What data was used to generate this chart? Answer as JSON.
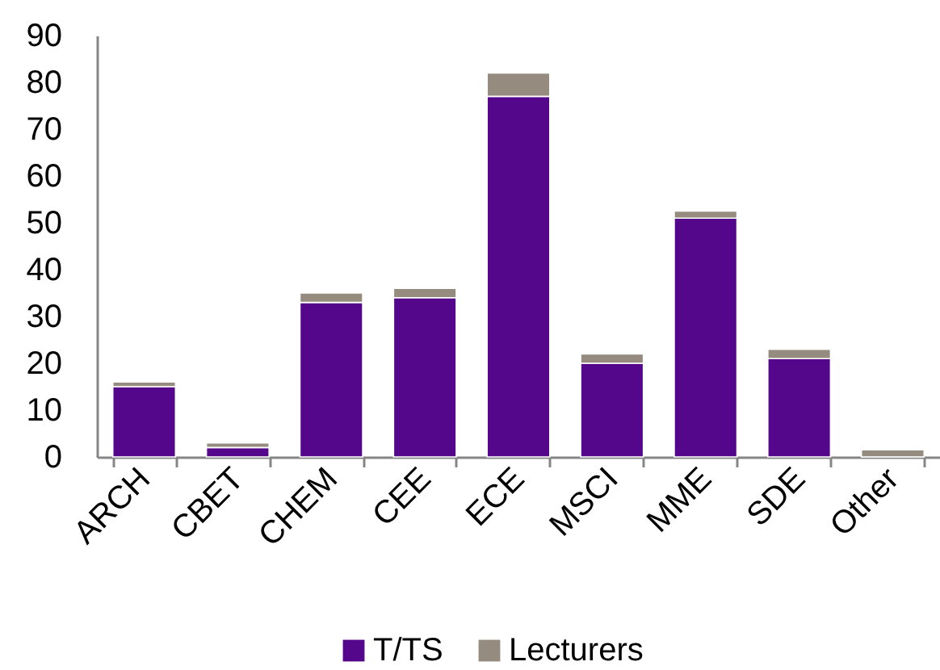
{
  "chart_data": {
    "type": "bar",
    "stacked": true,
    "categories": [
      "ARCH",
      "CBET",
      "CHEM",
      "CEE",
      "ECE",
      "MSCI",
      "MME",
      "SDE",
      "Other"
    ],
    "series": [
      {
        "name": "T/TS",
        "color": "#55078b",
        "values": [
          15,
          2,
          33,
          34,
          77,
          20,
          51,
          21,
          0
        ]
      },
      {
        "name": "Lecturers",
        "color": "#958b7f",
        "values": [
          1,
          1,
          2,
          2,
          5,
          2,
          1.5,
          2,
          1.5
        ]
      }
    ],
    "ylim": [
      0,
      90
    ],
    "yticks": [
      0,
      10,
      20,
      30,
      40,
      50,
      60,
      70,
      80,
      90
    ],
    "legend": "bottom"
  }
}
